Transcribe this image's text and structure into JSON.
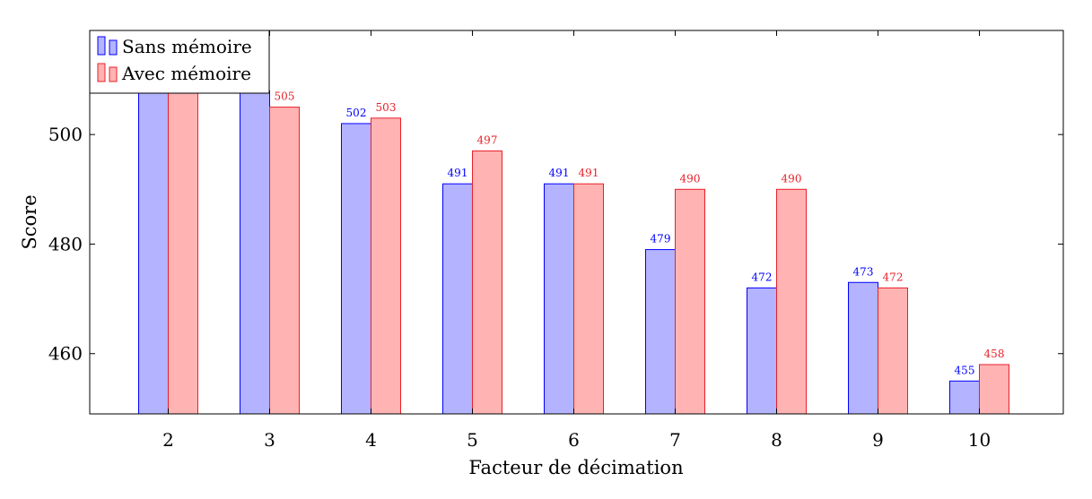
{
  "chart_data": {
    "type": "bar",
    "title": "",
    "xlabel": "Facteur de décimation",
    "ylabel": "Score",
    "categories": [
      "2",
      "3",
      "4",
      "5",
      "6",
      "7",
      "8",
      "9",
      "10"
    ],
    "series": [
      {
        "name": "Sans mémoire",
        "values": [
          510,
          508,
          502,
          491,
          491,
          479,
          472,
          473,
          455
        ],
        "labels": [
          "",
          "",
          "502",
          "491",
          "491",
          "479",
          "472",
          "473",
          "455"
        ],
        "color": "#0000ff",
        "fill": "#b3b3ff"
      },
      {
        "name": "Avec mémoire",
        "values": [
          510,
          505,
          503,
          497,
          491,
          490,
          490,
          472,
          458
        ],
        "labels": [
          "",
          "505",
          "503",
          "497",
          "491",
          "490",
          "490",
          "472",
          "458"
        ],
        "color": "#e8202a",
        "fill": "#ffb3b3"
      }
    ],
    "ylim": [
      449,
      519
    ],
    "yticks": [
      "460",
      "480",
      "500"
    ],
    "yticks_values": [
      460,
      480,
      500
    ],
    "grid": false,
    "legend_position": "top-left"
  }
}
